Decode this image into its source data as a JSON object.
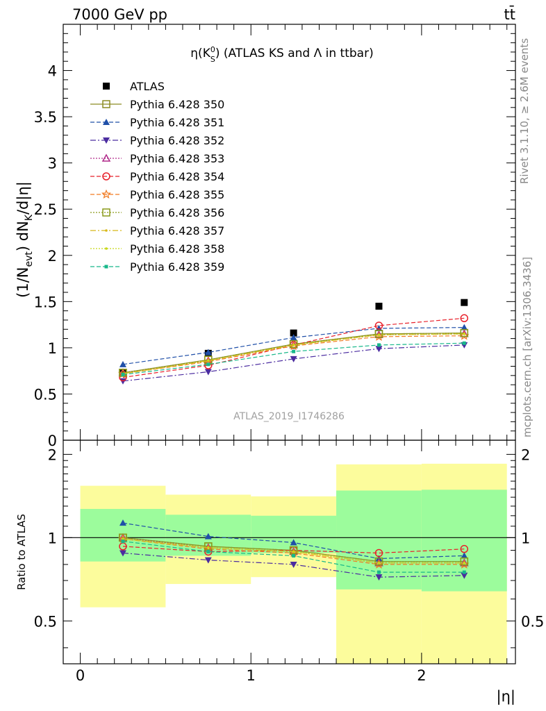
{
  "header": {
    "left": "7000 GeV pp",
    "right": "tt̄"
  },
  "side_labels": {
    "rivet": "Rivet 3.1.10, ≥ 2.6M events",
    "mcplots": "mcplots.cern.ch [arXiv:1306.3436]"
  },
  "chart_data": [
    {
      "type": "scatter",
      "panel": "main",
      "title": "η(K_S^0) (ATLAS KS and Λ in ttbar)",
      "title_parts": {
        "pre": "η(K",
        "sup": "0",
        "sub": "S",
        "post": ") (ATLAS KS and Λ in ttbar)"
      },
      "ylabel": "(1/N_evt) dN_K/d|η|",
      "ylabel_parts": {
        "a": "(1/N",
        "sub1": "evt",
        "b": ") dN",
        "sub2": "K",
        "c": "/d|η|"
      },
      "watermark": "ATLAS_2019_I1746286",
      "xlim": [
        -0.1,
        2.55
      ],
      "ylim": [
        0,
        4.5
      ],
      "yticks": [
        0,
        0.5,
        1,
        1.5,
        2,
        2.5,
        3,
        3.5,
        4
      ],
      "ytick_labels": [
        "0",
        "0.5",
        "1",
        "1.5",
        "2",
        "2.5",
        "3",
        "3.5",
        "4"
      ],
      "legend_position": "top-left",
      "x": [
        0.25,
        0.75,
        1.25,
        1.75,
        2.25
      ],
      "series": [
        {
          "name": "ATLAS",
          "color": "#000000",
          "marker": "filled-square",
          "dash": "none",
          "line": false,
          "values": [
            0.73,
            0.94,
            1.16,
            1.45,
            1.49
          ]
        },
        {
          "name": "Pythia 6.428 350",
          "color": "#8b8b22",
          "marker": "open-square",
          "dash": "solid",
          "line": true,
          "values": [
            0.73,
            0.87,
            1.04,
            1.15,
            1.16
          ]
        },
        {
          "name": "Pythia 6.428 351",
          "color": "#1f4fa8",
          "marker": "filled-triangle-up",
          "dash": "6,3",
          "line": true,
          "values": [
            0.82,
            0.95,
            1.11,
            1.21,
            1.22
          ]
        },
        {
          "name": "Pythia 6.428 352",
          "color": "#4b2ca0",
          "marker": "filled-triangle-down",
          "dash": "8,3,2,3",
          "line": true,
          "values": [
            0.64,
            0.74,
            0.88,
            0.99,
            1.03
          ]
        },
        {
          "name": "Pythia 6.428 353",
          "color": "#b02a8a",
          "marker": "open-triangle-up",
          "dash": "2,2",
          "line": true,
          "values": [
            0.73,
            0.86,
            1.03,
            1.14,
            1.15
          ]
        },
        {
          "name": "Pythia 6.428 354",
          "color": "#e8202a",
          "marker": "open-circle",
          "dash": "6,3",
          "line": true,
          "values": [
            0.68,
            0.81,
            1.03,
            1.24,
            1.32
          ]
        },
        {
          "name": "Pythia 6.428 355",
          "color": "#f07a22",
          "marker": "open-star",
          "dash": "6,3",
          "line": true,
          "values": [
            0.72,
            0.85,
            1.02,
            1.12,
            1.13
          ]
        },
        {
          "name": "Pythia 6.428 356",
          "color": "#8a9a1a",
          "marker": "open-square",
          "dash": "2,2",
          "line": true,
          "values": [
            0.73,
            0.87,
            1.04,
            1.15,
            1.16
          ]
        },
        {
          "name": "Pythia 6.428 357",
          "color": "#d8b818",
          "marker": "small-dot",
          "dash": "8,3,2,3",
          "line": true,
          "values": [
            0.72,
            0.86,
            1.03,
            1.14,
            1.15
          ]
        },
        {
          "name": "Pythia 6.428 358",
          "color": "#c8d818",
          "marker": "small-dot",
          "dash": "2,2",
          "line": true,
          "values": [
            0.72,
            0.86,
            1.03,
            1.14,
            1.15
          ]
        },
        {
          "name": "Pythia 6.428 359",
          "color": "#18b88a",
          "marker": "small-filled-square",
          "dash": "6,3",
          "line": true,
          "values": [
            0.71,
            0.82,
            0.96,
            1.03,
            1.05
          ]
        }
      ]
    },
    {
      "type": "scatter",
      "panel": "ratio",
      "ylabel": "Ratio to ATLAS",
      "xlabel": "|η|",
      "ylim": [
        0.35,
        2.25
      ],
      "yticks": [
        0.5,
        1,
        2
      ],
      "ytick_labels": [
        "0.5",
        "1",
        "2"
      ],
      "xticks": [
        0,
        1,
        2
      ],
      "xtick_labels": [
        "0",
        "1",
        "2"
      ],
      "reference_line": 1,
      "bands": [
        {
          "x": [
            0,
            0.5
          ],
          "green": [
            0.82,
            1.27
          ],
          "yellow": [
            0.56,
            1.54
          ]
        },
        {
          "x": [
            0.5,
            1.0
          ],
          "green": [
            0.86,
            1.21
          ],
          "yellow": [
            0.68,
            1.43
          ]
        },
        {
          "x": [
            1.0,
            1.5
          ],
          "green": [
            0.88,
            1.2
          ],
          "yellow": [
            0.72,
            1.41
          ]
        },
        {
          "x": [
            1.5,
            2.0
          ],
          "green": [
            0.65,
            1.48
          ],
          "yellow": [
            0.35,
            1.84
          ]
        },
        {
          "x": [
            2.0,
            2.5
          ],
          "green": [
            0.64,
            1.49
          ],
          "yellow": [
            0.35,
            1.85
          ]
        }
      ],
      "band_colors": {
        "green": "#9cfc9c",
        "yellow": "#fcfc9c"
      },
      "x": [
        0.25,
        0.75,
        1.25,
        1.75,
        2.25
      ],
      "series": [
        {
          "name": "Pythia 6.428 350",
          "values": [
            1.0,
            0.93,
            0.9,
            0.82,
            0.82
          ]
        },
        {
          "name": "Pythia 6.428 351",
          "values": [
            1.13,
            1.01,
            0.96,
            0.84,
            0.86
          ]
        },
        {
          "name": "Pythia 6.428 352",
          "values": [
            0.88,
            0.83,
            0.8,
            0.72,
            0.73
          ]
        },
        {
          "name": "Pythia 6.428 353",
          "values": [
            1.0,
            0.92,
            0.89,
            0.81,
            0.81
          ]
        },
        {
          "name": "Pythia 6.428 354",
          "values": [
            0.93,
            0.89,
            0.9,
            0.88,
            0.91
          ]
        },
        {
          "name": "Pythia 6.428 355",
          "values": [
            0.99,
            0.91,
            0.88,
            0.8,
            0.8
          ]
        },
        {
          "name": "Pythia 6.428 356",
          "values": [
            1.0,
            0.93,
            0.9,
            0.82,
            0.82
          ]
        },
        {
          "name": "Pythia 6.428 357",
          "values": [
            0.99,
            0.92,
            0.89,
            0.81,
            0.81
          ]
        },
        {
          "name": "Pythia 6.428 358",
          "values": [
            0.99,
            0.92,
            0.89,
            0.81,
            0.81
          ]
        },
        {
          "name": "Pythia 6.428 359",
          "values": [
            0.97,
            0.89,
            0.86,
            0.75,
            0.75
          ]
        }
      ]
    }
  ]
}
